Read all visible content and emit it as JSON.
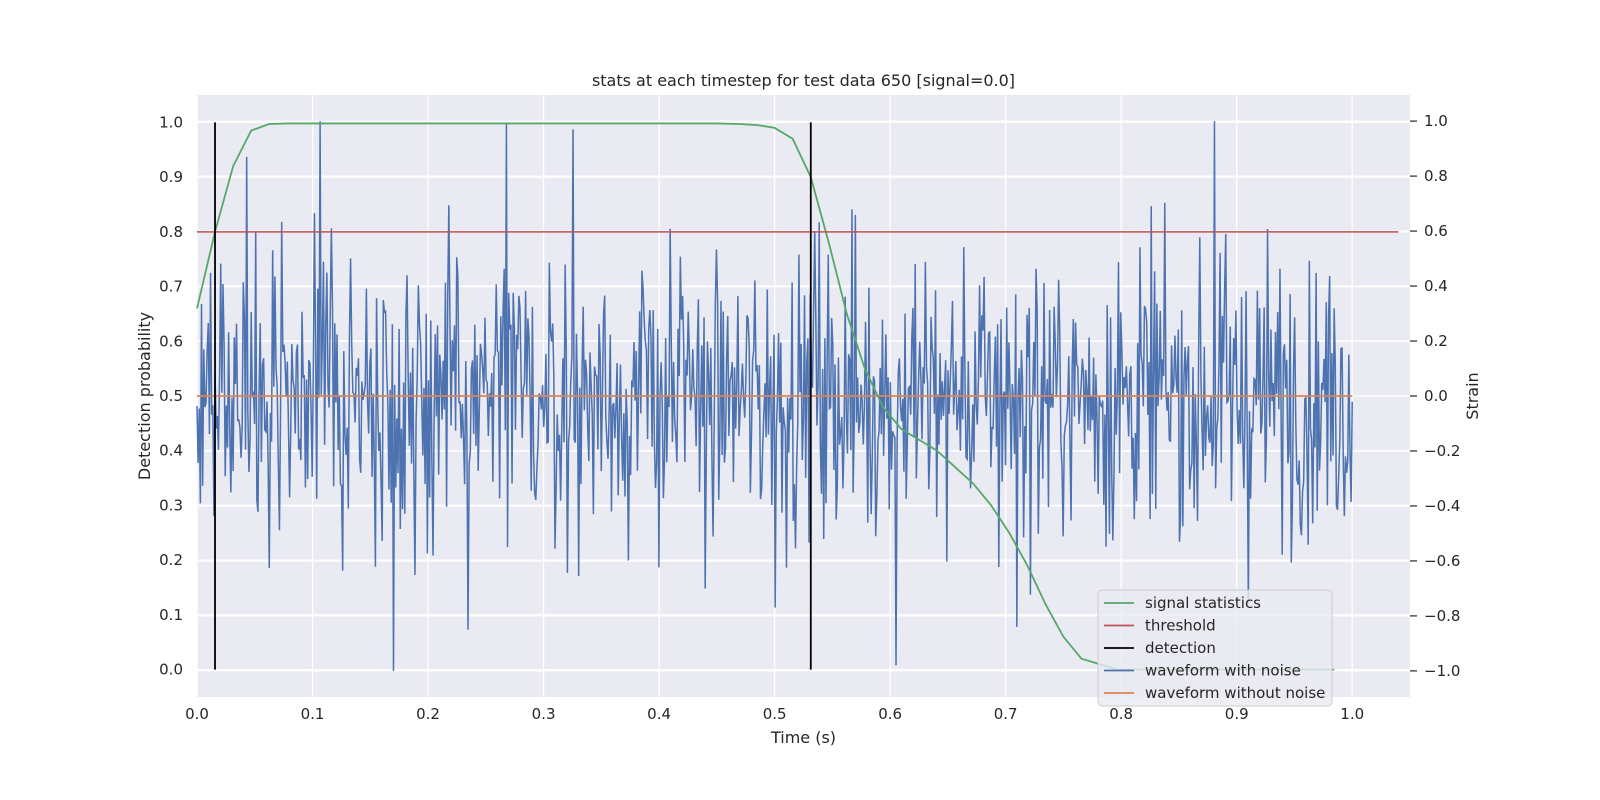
{
  "chart_data": {
    "type": "line",
    "title": "stats at each timestep for test data 650 [signal=0.0]",
    "xlabel": "Time (s)",
    "ylabel": "Detection probability",
    "y2label": "Strain",
    "xlim": [
      0.0,
      1.05
    ],
    "ylim": [
      -0.05,
      1.05
    ],
    "y2lim": [
      -1.095,
      1.095
    ],
    "xticks": [
      "0.0",
      "0.1",
      "0.2",
      "0.3",
      "0.4",
      "0.5",
      "0.6",
      "0.7",
      "0.8",
      "0.9",
      "1.0"
    ],
    "yticks": [
      "0.0",
      "0.1",
      "0.2",
      "0.3",
      "0.4",
      "0.5",
      "0.6",
      "0.7",
      "0.8",
      "0.9",
      "1.0"
    ],
    "y2ticks": [
      "−1.0",
      "−0.8",
      "−0.6",
      "−0.4",
      "−0.2",
      "0.0",
      "0.2",
      "0.4",
      "0.6",
      "0.8",
      "1.0"
    ],
    "grid": true,
    "legend_position": "lower-right",
    "colors": {
      "background": "#eaeaf2",
      "grid": "#ffffff",
      "signal": "#55a868",
      "threshold": "#c44e52",
      "detection": "#000000",
      "noisy": "#4c72b0",
      "clean": "#dd8452"
    },
    "legend": [
      {
        "key": "signal",
        "label": "signal statistics"
      },
      {
        "key": "threshold",
        "label": "threshold"
      },
      {
        "key": "detection",
        "label": "detection"
      },
      {
        "key": "noisy",
        "label": "waveform with noise"
      },
      {
        "key": "clean",
        "label": "waveform without noise"
      }
    ],
    "series": [
      {
        "name": "signal statistics",
        "axis": "left",
        "x": [
          0.0,
          0.0156,
          0.0313,
          0.0469,
          0.0625,
          0.0781,
          0.1,
          0.2,
          0.3,
          0.4,
          0.45,
          0.47,
          0.485,
          0.5,
          0.5156,
          0.5313,
          0.5469,
          0.5625,
          0.5781,
          0.5938,
          0.6094,
          0.625,
          0.6406,
          0.6563,
          0.6719,
          0.6875,
          0.7031,
          0.7188,
          0.7344,
          0.75,
          0.7656,
          0.7813,
          0.7969,
          0.8125,
          0.85,
          0.9,
          0.95,
          0.9844
        ],
        "y": [
          0.66,
          0.8,
          0.92,
          0.985,
          0.997,
          0.998,
          0.998,
          0.998,
          0.998,
          0.998,
          0.998,
          0.997,
          0.995,
          0.99,
          0.97,
          0.9,
          0.78,
          0.65,
          0.55,
          0.48,
          0.44,
          0.42,
          0.4,
          0.37,
          0.34,
          0.3,
          0.25,
          0.19,
          0.12,
          0.06,
          0.02,
          0.01,
          0.0,
          0.0,
          0.0,
          0.0,
          0.0,
          0.0
        ]
      },
      {
        "name": "threshold",
        "axis": "left",
        "x": [
          0.0,
          1.04
        ],
        "y": [
          0.8,
          0.8
        ]
      },
      {
        "name": "detection",
        "axis": "left",
        "type": "vlines",
        "x": [
          0.0156,
          0.5313
        ],
        "y": [
          0.0,
          1.0
        ]
      },
      {
        "name": "waveform with noise",
        "axis": "right",
        "n_points": 1024,
        "x_range": [
          0.0,
          1.0
        ],
        "y_range": [
          -1.0,
          1.0
        ],
        "peaks": [
          {
            "x": 0.107,
            "y": 1.0
          },
          {
            "x": 0.268,
            "y": 0.99
          },
          {
            "x": 0.881,
            "y": 1.0
          },
          {
            "x": 0.17,
            "y": -1.0
          },
          {
            "x": 0.605,
            "y": -0.98
          },
          {
            "x": 0.043,
            "y": 0.87
          },
          {
            "x": 0.326,
            "y": 0.97
          },
          {
            "x": 0.235,
            "y": -0.85
          },
          {
            "x": 0.71,
            "y": -0.84
          },
          {
            "x": 0.5,
            "y": -0.77
          },
          {
            "x": 0.535,
            "y": 0.6
          }
        ]
      },
      {
        "name": "waveform without noise",
        "axis": "right",
        "x": [
          0.0,
          1.0
        ],
        "y": [
          0.0,
          0.0
        ]
      }
    ]
  }
}
